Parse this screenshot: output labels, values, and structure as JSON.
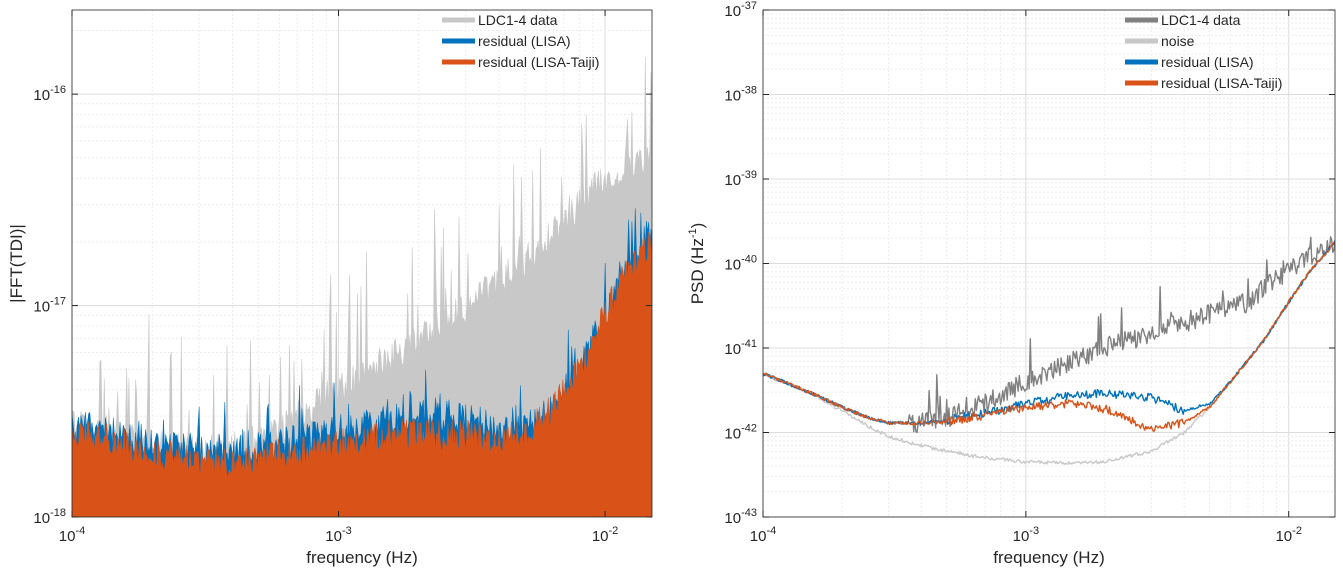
{
  "chart_data": [
    {
      "type": "area",
      "panel": "left",
      "xlabel": "frequency (Hz)",
      "ylabel": "|FFT(TDI)|",
      "xscale": "log",
      "yscale": "log",
      "xlim": [
        0.0001,
        0.015
      ],
      "ylim": [
        1e-18,
        2.5e-16
      ],
      "xtick_labels": [
        {
          "base": "10",
          "exp": "-4"
        },
        {
          "base": "10",
          "exp": "-3"
        },
        {
          "base": "10",
          "exp": "-2"
        }
      ],
      "ytick_labels": [
        {
          "base": "10",
          "exp": "-18"
        },
        {
          "base": "10",
          "exp": "-17"
        },
        {
          "base": "10",
          "exp": "-16"
        }
      ],
      "grid": true,
      "legend_position": "top-right",
      "series": [
        {
          "name": "LDC1-4 data",
          "color": "#c8c8c8",
          "x": [
            0.0001,
            0.0002,
            0.0003,
            0.0005,
            0.0007,
            0.001,
            0.0015,
            0.002,
            0.003,
            0.004,
            0.005,
            0.006,
            0.007,
            0.008,
            0.009,
            0.01,
            0.012,
            0.015
          ],
          "values": [
            2.8e-18,
            2.2e-18,
            2e-18,
            2.3e-18,
            3e-18,
            4e-18,
            5.5e-18,
            7e-18,
            1e-17,
            1.3e-17,
            1.6e-17,
            2e-17,
            2.5e-17,
            3e-17,
            3.5e-17,
            4e-17,
            4.5e-17,
            5e-17
          ]
        },
        {
          "name": "residual (LISA)",
          "color": "#0072bd",
          "x": [
            0.0001,
            0.0002,
            0.0003,
            0.0005,
            0.0007,
            0.001,
            0.0015,
            0.002,
            0.003,
            0.004,
            0.005,
            0.006,
            0.008,
            0.01,
            0.012,
            0.015
          ],
          "values": [
            2.8e-18,
            2.2e-18,
            2e-18,
            2.1e-18,
            2.3e-18,
            2.6e-18,
            2.9e-18,
            3e-18,
            2.9e-18,
            2.6e-18,
            2.6e-18,
            3e-18,
            5e-18,
            9e-18,
            1.4e-17,
            2e-17
          ]
        },
        {
          "name": "residual (LISA-Taiji)",
          "color": "#d95319",
          "x": [
            0.0001,
            0.0002,
            0.0003,
            0.0005,
            0.0007,
            0.001,
            0.0015,
            0.002,
            0.003,
            0.004,
            0.005,
            0.006,
            0.008,
            0.01,
            0.012,
            0.015
          ],
          "values": [
            2.6e-18,
            2e-18,
            1.8e-18,
            1.9e-18,
            2e-18,
            2.2e-18,
            2.4e-18,
            2.5e-18,
            2.4e-18,
            2.3e-18,
            2.5e-18,
            3e-18,
            5e-18,
            9e-18,
            1.4e-17,
            2e-17
          ]
        }
      ]
    },
    {
      "type": "line",
      "panel": "right",
      "xlabel": "frequency (Hz)",
      "ylabel_main": "PSD (Hz",
      "ylabel_exp": "-1",
      "ylabel_tail": ")",
      "xscale": "log",
      "yscale": "log",
      "xlim": [
        0.0001,
        0.015
      ],
      "ylim": [
        1e-43,
        1e-37
      ],
      "xtick_labels": [
        {
          "base": "10",
          "exp": "-4"
        },
        {
          "base": "10",
          "exp": "-3"
        },
        {
          "base": "10",
          "exp": "-2"
        }
      ],
      "ytick_labels": [
        {
          "base": "10",
          "exp": "-43"
        },
        {
          "base": "10",
          "exp": "-42"
        },
        {
          "base": "10",
          "exp": "-41"
        },
        {
          "base": "10",
          "exp": "-40"
        },
        {
          "base": "10",
          "exp": "-39"
        },
        {
          "base": "10",
          "exp": "-38"
        },
        {
          "base": "10",
          "exp": "-37"
        }
      ],
      "grid": true,
      "legend_position": "top-right",
      "series": [
        {
          "name": "LDC1-4 data",
          "color": "#808080",
          "x": [
            0.0001,
            0.00015,
            0.0002,
            0.00025,
            0.0003,
            0.0004,
            0.0005,
            0.0007,
            0.001,
            0.0015,
            0.002,
            0.003,
            0.004,
            0.005,
            0.006,
            0.007,
            0.008,
            0.01,
            0.012,
            0.015
          ],
          "values": [
            5e-42,
            3e-42,
            2e-42,
            1.5e-42,
            1.3e-42,
            1.3e-42,
            1.5e-42,
            2.2e-42,
            4e-42,
            7e-42,
            1e-41,
            1.5e-41,
            2e-41,
            2.5e-41,
            3e-41,
            3.5e-41,
            5e-41,
            8e-41,
            1.2e-40,
            1.8e-40
          ]
        },
        {
          "name": "noise",
          "color": "#c8c8c8",
          "x": [
            0.0001,
            0.00015,
            0.0002,
            0.00025,
            0.0003,
            0.0004,
            0.0005,
            0.0007,
            0.001,
            0.0015,
            0.002,
            0.003,
            0.004,
            0.005,
            0.006,
            0.008,
            0.01,
            0.012,
            0.015
          ],
          "values": [
            5e-42,
            3e-42,
            1.8e-42,
            1.2e-42,
            9e-43,
            7e-43,
            6e-43,
            5e-43,
            4.5e-43,
            4.3e-43,
            4.5e-43,
            6e-43,
            1e-42,
            2e-42,
            4e-42,
            1.2e-41,
            3.5e-41,
            8e-41,
            1.8e-40
          ]
        },
        {
          "name": "residual (LISA)",
          "color": "#0072bd",
          "x": [
            0.0001,
            0.00015,
            0.0002,
            0.00025,
            0.0003,
            0.0004,
            0.0005,
            0.0007,
            0.001,
            0.0015,
            0.002,
            0.003,
            0.004,
            0.005,
            0.006,
            0.008,
            0.01,
            0.012,
            0.015
          ],
          "values": [
            5e-42,
            3e-42,
            2e-42,
            1.5e-42,
            1.3e-42,
            1.3e-42,
            1.4e-42,
            1.7e-42,
            2.2e-42,
            2.8e-42,
            2.9e-42,
            2.6e-42,
            1.8e-42,
            2.2e-42,
            4e-42,
            1.2e-41,
            3.5e-41,
            8e-41,
            1.8e-40
          ]
        },
        {
          "name": "residual (LISA-Taiji)",
          "color": "#d95319",
          "x": [
            0.0001,
            0.00015,
            0.0002,
            0.00025,
            0.0003,
            0.0004,
            0.0005,
            0.0007,
            0.001,
            0.0015,
            0.002,
            0.003,
            0.004,
            0.005,
            0.006,
            0.008,
            0.01,
            0.012,
            0.015
          ],
          "values": [
            5e-42,
            3e-42,
            2e-42,
            1.5e-42,
            1.3e-42,
            1.3e-42,
            1.35e-42,
            1.6e-42,
            2e-42,
            2.2e-42,
            1.9e-42,
            1.1e-42,
            1.3e-42,
            2e-42,
            4e-42,
            1.2e-41,
            3.5e-41,
            8e-41,
            1.8e-40
          ]
        }
      ]
    }
  ]
}
